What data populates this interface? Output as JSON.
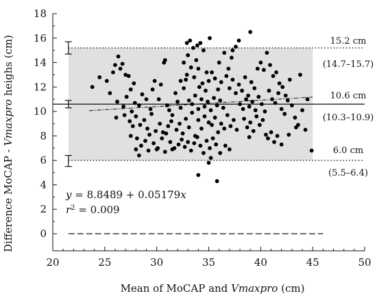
{
  "chart_data": {
    "type": "scatter",
    "xlabel_prefix": "Mean of MoCAP and ",
    "xlabel_italic": "Vmaxpro",
    "xlabel_suffix": " (cm)",
    "ylabel_prefix": "Difference MoCAP - ",
    "ylabel_italic": "Vmaxpro",
    "ylabel_suffix": " heighs (cm)",
    "xlim": [
      20,
      50
    ],
    "ylim": [
      0,
      18
    ],
    "xticks": [
      20,
      25,
      30,
      35,
      40,
      45,
      50
    ],
    "yticks": [
      0,
      2,
      4,
      6,
      8,
      10,
      12,
      14,
      16,
      18
    ],
    "grid": false,
    "limits_of_agreement": {
      "upper": {
        "value": 15.2,
        "label": "15.2 cm",
        "ci_label": "(14.7–15.7)",
        "ci": [
          14.7,
          15.7
        ]
      },
      "mean": {
        "value": 10.6,
        "label": "10.6 cm",
        "ci_label": "(10.3–10.9)",
        "ci": [
          10.3,
          10.9
        ]
      },
      "lower": {
        "value": 6.0,
        "label": "6.0 cm",
        "ci_label": "(5.5–6.4)",
        "ci": [
          5.5,
          6.4
        ]
      }
    },
    "shaded_band": {
      "x": [
        21.5,
        45
      ],
      "y": [
        6.0,
        15.2
      ],
      "color": "#e0e0e0"
    },
    "ci_bar_x": 21.5,
    "regression": {
      "x_range": [
        23.5,
        45
      ],
      "intercept": 8.8489,
      "slope": 0.05179,
      "equation_prefix": "y",
      "equation_body": " = 8.8489 + 0.05179",
      "equation_var": "x",
      "r2_prefix": "r",
      "r2_sup": "2",
      "r2_body": " = 0.009"
    },
    "zero_line": {
      "y": 0,
      "x_range": [
        21.5,
        46
      ],
      "style": "dashed"
    },
    "series": [
      {
        "marker_color": "#000000",
        "points": [
          [
            23.8,
            12.0
          ],
          [
            24.5,
            12.8
          ],
          [
            25.2,
            12.5
          ],
          [
            25.8,
            13.2
          ],
          [
            26.0,
            13.8
          ],
          [
            26.3,
            14.5
          ],
          [
            26.5,
            13.5
          ],
          [
            26.7,
            13.9
          ],
          [
            27.0,
            13.0
          ],
          [
            27.3,
            12.9
          ],
          [
            27.5,
            11.8
          ],
          [
            27.8,
            12.3
          ],
          [
            25.5,
            11.5
          ],
          [
            26.2,
            10.8
          ],
          [
            26.8,
            10.4
          ],
          [
            27.1,
            11.2
          ],
          [
            27.6,
            10.0
          ],
          [
            27.9,
            10.7
          ],
          [
            28.3,
            10.5
          ],
          [
            28.6,
            11.4
          ],
          [
            29.0,
            11.0
          ],
          [
            29.4,
            10.2
          ],
          [
            29.8,
            12.5
          ],
          [
            30.2,
            11.0
          ],
          [
            26.1,
            9.5
          ],
          [
            26.9,
            9.7
          ],
          [
            27.4,
            9.2
          ],
          [
            27.7,
            8.8
          ],
          [
            28.0,
            9.6
          ],
          [
            28.4,
            8.9
          ],
          [
            28.8,
            9.3
          ],
          [
            29.1,
            8.6
          ],
          [
            29.5,
            9.8
          ],
          [
            29.9,
            8.4
          ],
          [
            30.3,
            9.0
          ],
          [
            30.6,
            8.3
          ],
          [
            27.5,
            8.0
          ],
          [
            28.1,
            7.8
          ],
          [
            28.5,
            7.2
          ],
          [
            28.9,
            7.6
          ],
          [
            29.3,
            8.1
          ],
          [
            29.7,
            7.4
          ],
          [
            30.1,
            7.0
          ],
          [
            30.5,
            7.8
          ],
          [
            30.9,
            8.2
          ],
          [
            31.3,
            7.5
          ],
          [
            31.7,
            7.0
          ],
          [
            32.1,
            7.3
          ],
          [
            28.0,
            6.9
          ],
          [
            28.3,
            6.4
          ],
          [
            29.2,
            6.8
          ],
          [
            30.0,
            6.9
          ],
          [
            30.8,
            6.7
          ],
          [
            31.5,
            6.9
          ],
          [
            29.6,
            11.8
          ],
          [
            30.4,
            12.2
          ],
          [
            30.7,
            14.0
          ],
          [
            30.8,
            14.2
          ],
          [
            31.0,
            10.5
          ],
          [
            31.2,
            10.1
          ],
          [
            31.5,
            9.7
          ],
          [
            31.8,
            11.5
          ],
          [
            32.0,
            10.8
          ],
          [
            32.3,
            10.3
          ],
          [
            32.6,
            11.9
          ],
          [
            32.9,
            13.0
          ],
          [
            31.1,
            8.8
          ],
          [
            31.4,
            9.2
          ],
          [
            31.9,
            8.5
          ],
          [
            32.2,
            9.0
          ],
          [
            32.5,
            8.2
          ],
          [
            32.8,
            9.4
          ],
          [
            33.1,
            8.7
          ],
          [
            33.4,
            9.9
          ],
          [
            33.7,
            8.0
          ],
          [
            34.0,
            9.3
          ],
          [
            34.3,
            8.6
          ],
          [
            34.6,
            9.6
          ],
          [
            32.4,
            7.7
          ],
          [
            32.7,
            7.1
          ],
          [
            33.0,
            7.5
          ],
          [
            33.3,
            6.8
          ],
          [
            33.6,
            7.4
          ],
          [
            33.9,
            7.9
          ],
          [
            34.2,
            7.2
          ],
          [
            34.5,
            6.6
          ],
          [
            34.8,
            7.6
          ],
          [
            35.1,
            7.0
          ],
          [
            35.4,
            7.8
          ],
          [
            35.7,
            7.3
          ],
          [
            32.6,
            14.0
          ],
          [
            32.9,
            15.6
          ],
          [
            33.2,
            15.8
          ],
          [
            33.5,
            15.2
          ],
          [
            33.9,
            15.4
          ],
          [
            34.2,
            15.6
          ],
          [
            34.5,
            15.0
          ],
          [
            33.0,
            14.6
          ],
          [
            33.8,
            14.2
          ],
          [
            35.1,
            16.0
          ],
          [
            34.0,
            13.5
          ],
          [
            34.8,
            13.2
          ],
          [
            32.3,
            12.5
          ],
          [
            32.8,
            12.6
          ],
          [
            33.3,
            13.6
          ],
          [
            33.6,
            12.8
          ],
          [
            34.1,
            12.0
          ],
          [
            34.4,
            12.3
          ],
          [
            34.7,
            11.7
          ],
          [
            35.0,
            12.5
          ],
          [
            35.3,
            13.2
          ],
          [
            35.6,
            12.7
          ],
          [
            35.9,
            11.8
          ],
          [
            36.2,
            12.4
          ],
          [
            33.1,
            10.9
          ],
          [
            33.4,
            10.6
          ],
          [
            33.7,
            11.3
          ],
          [
            34.0,
            10.2
          ],
          [
            34.3,
            11.0
          ],
          [
            34.6,
            10.4
          ],
          [
            34.9,
            10.8
          ],
          [
            35.2,
            10.1
          ],
          [
            35.5,
            11.1
          ],
          [
            35.8,
            10.5
          ],
          [
            36.1,
            10.9
          ],
          [
            36.4,
            10.3
          ],
          [
            35.0,
            9.1
          ],
          [
            35.3,
            8.9
          ],
          [
            35.6,
            9.5
          ],
          [
            35.9,
            8.3
          ],
          [
            36.2,
            9.0
          ],
          [
            36.5,
            8.6
          ],
          [
            36.8,
            9.7
          ],
          [
            37.1,
            8.8
          ],
          [
            37.4,
            9.3
          ],
          [
            37.7,
            8.5
          ],
          [
            35.2,
            6.2
          ],
          [
            35.0,
            5.8
          ],
          [
            34.0,
            4.8
          ],
          [
            35.8,
            4.3
          ],
          [
            36.1,
            6.6
          ],
          [
            36.6,
            7.2
          ],
          [
            37.0,
            6.9
          ],
          [
            36.0,
            14.0
          ],
          [
            36.5,
            14.8
          ],
          [
            36.9,
            13.5
          ],
          [
            37.2,
            14.4
          ],
          [
            37.6,
            15.3
          ],
          [
            37.9,
            15.8
          ],
          [
            37.3,
            15.0
          ],
          [
            39.0,
            16.5
          ],
          [
            36.7,
            12.9
          ],
          [
            37.0,
            11.9
          ],
          [
            37.3,
            12.6
          ],
          [
            37.6,
            11.5
          ],
          [
            37.9,
            12.2
          ],
          [
            38.2,
            11.7
          ],
          [
            38.5,
            12.8
          ],
          [
            38.8,
            11.3
          ],
          [
            39.1,
            12.4
          ],
          [
            39.4,
            11.9
          ],
          [
            38.0,
            10.6
          ],
          [
            38.3,
            10.2
          ],
          [
            38.6,
            11.0
          ],
          [
            38.9,
            10.4
          ],
          [
            39.2,
            10.8
          ],
          [
            39.5,
            10.1
          ],
          [
            39.8,
            11.2
          ],
          [
            40.1,
            10.6
          ],
          [
            40.4,
            10.0
          ],
          [
            38.4,
            9.4
          ],
          [
            38.7,
            8.7
          ],
          [
            39.0,
            9.1
          ],
          [
            39.3,
            8.4
          ],
          [
            39.6,
            9.6
          ],
          [
            39.9,
            8.9
          ],
          [
            40.2,
            9.3
          ],
          [
            40.5,
            8.1
          ],
          [
            39.7,
            13.5
          ],
          [
            40.0,
            14.0
          ],
          [
            40.3,
            13.4
          ],
          [
            40.6,
            14.8
          ],
          [
            40.9,
            13.8
          ],
          [
            41.2,
            12.9
          ],
          [
            41.5,
            13.2
          ],
          [
            41.8,
            12.3
          ],
          [
            42.1,
            12.0
          ],
          [
            42.4,
            11.3
          ],
          [
            40.8,
            11.7
          ],
          [
            41.1,
            11.0
          ],
          [
            41.4,
            10.7
          ],
          [
            41.7,
            11.5
          ],
          [
            42.0,
            10.2
          ],
          [
            42.3,
            9.8
          ],
          [
            42.6,
            10.9
          ],
          [
            43.0,
            10.5
          ],
          [
            43.3,
            9.5
          ],
          [
            43.6,
            8.9
          ],
          [
            40.7,
            7.8
          ],
          [
            41.0,
            8.3
          ],
          [
            41.3,
            7.5
          ],
          [
            41.6,
            8.0
          ],
          [
            42.0,
            7.3
          ],
          [
            42.7,
            8.1
          ],
          [
            43.4,
            8.7
          ],
          [
            44.3,
            8.5
          ],
          [
            44.9,
            6.8
          ],
          [
            38.9,
            7.9
          ],
          [
            44.0,
            10.1
          ],
          [
            44.5,
            11.0
          ],
          [
            43.8,
            13.0
          ],
          [
            42.8,
            12.6
          ]
        ]
      }
    ]
  }
}
